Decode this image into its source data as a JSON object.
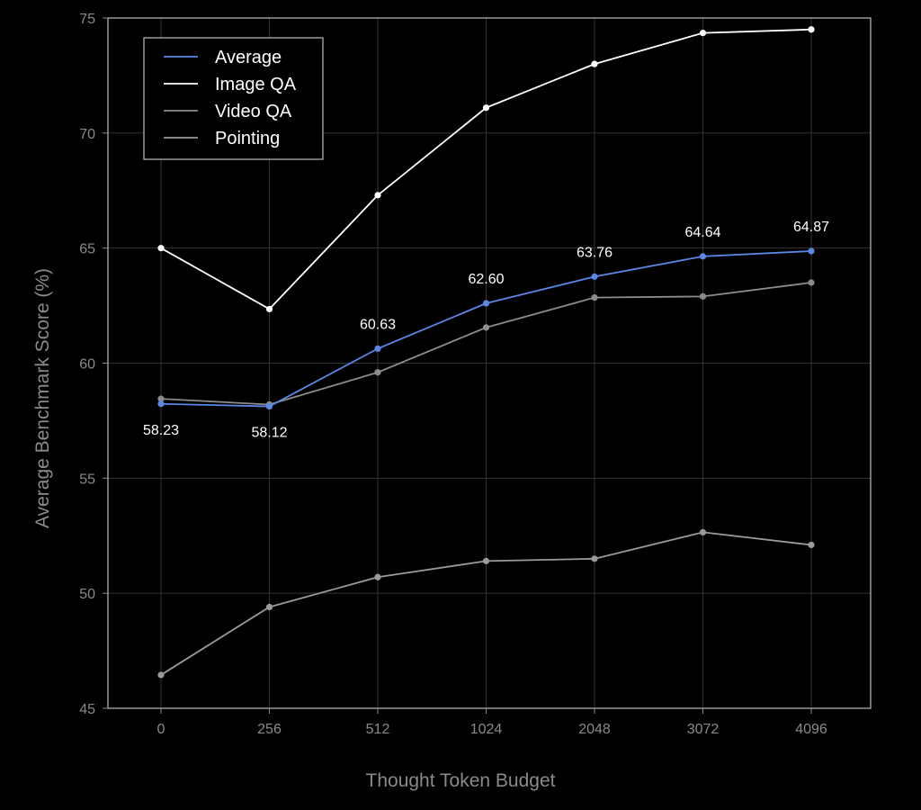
{
  "colors": {
    "background": "#000000",
    "grid": "#333333",
    "axis_text": "#8a8a8a",
    "frame": "#bdbdbd"
  },
  "chart_data": {
    "type": "line",
    "title": "",
    "xlabel": "Thought Token Budget",
    "ylabel": "Average Benchmark Score (%)",
    "categories": [
      "0",
      "256",
      "512",
      "1024",
      "2048",
      "3072",
      "4096"
    ],
    "ylim": [
      45,
      75
    ],
    "yticks": [
      45,
      50,
      55,
      60,
      65,
      70,
      75
    ],
    "grid": true,
    "legend_position": "top-left",
    "series": [
      {
        "name": "Average",
        "color": "#5b87e5",
        "values": [
          58.23,
          58.12,
          60.63,
          62.6,
          63.76,
          64.64,
          64.87
        ],
        "labels": [
          "58.23",
          "58.12",
          "60.63",
          "62.60",
          "63.76",
          "64.64",
          "64.87"
        ]
      },
      {
        "name": "Image QA",
        "color": "#ffffff",
        "values": [
          65.0,
          62.35,
          67.3,
          71.1,
          73.0,
          74.35,
          74.5
        ]
      },
      {
        "name": "Video QA",
        "color": "#8c8c8c",
        "values": [
          58.45,
          58.2,
          59.6,
          61.55,
          62.85,
          62.9,
          63.5
        ]
      },
      {
        "name": "Pointing",
        "color": "#9a9a9a",
        "values": [
          46.45,
          49.4,
          50.7,
          51.4,
          51.5,
          52.65,
          52.1
        ]
      }
    ]
  }
}
